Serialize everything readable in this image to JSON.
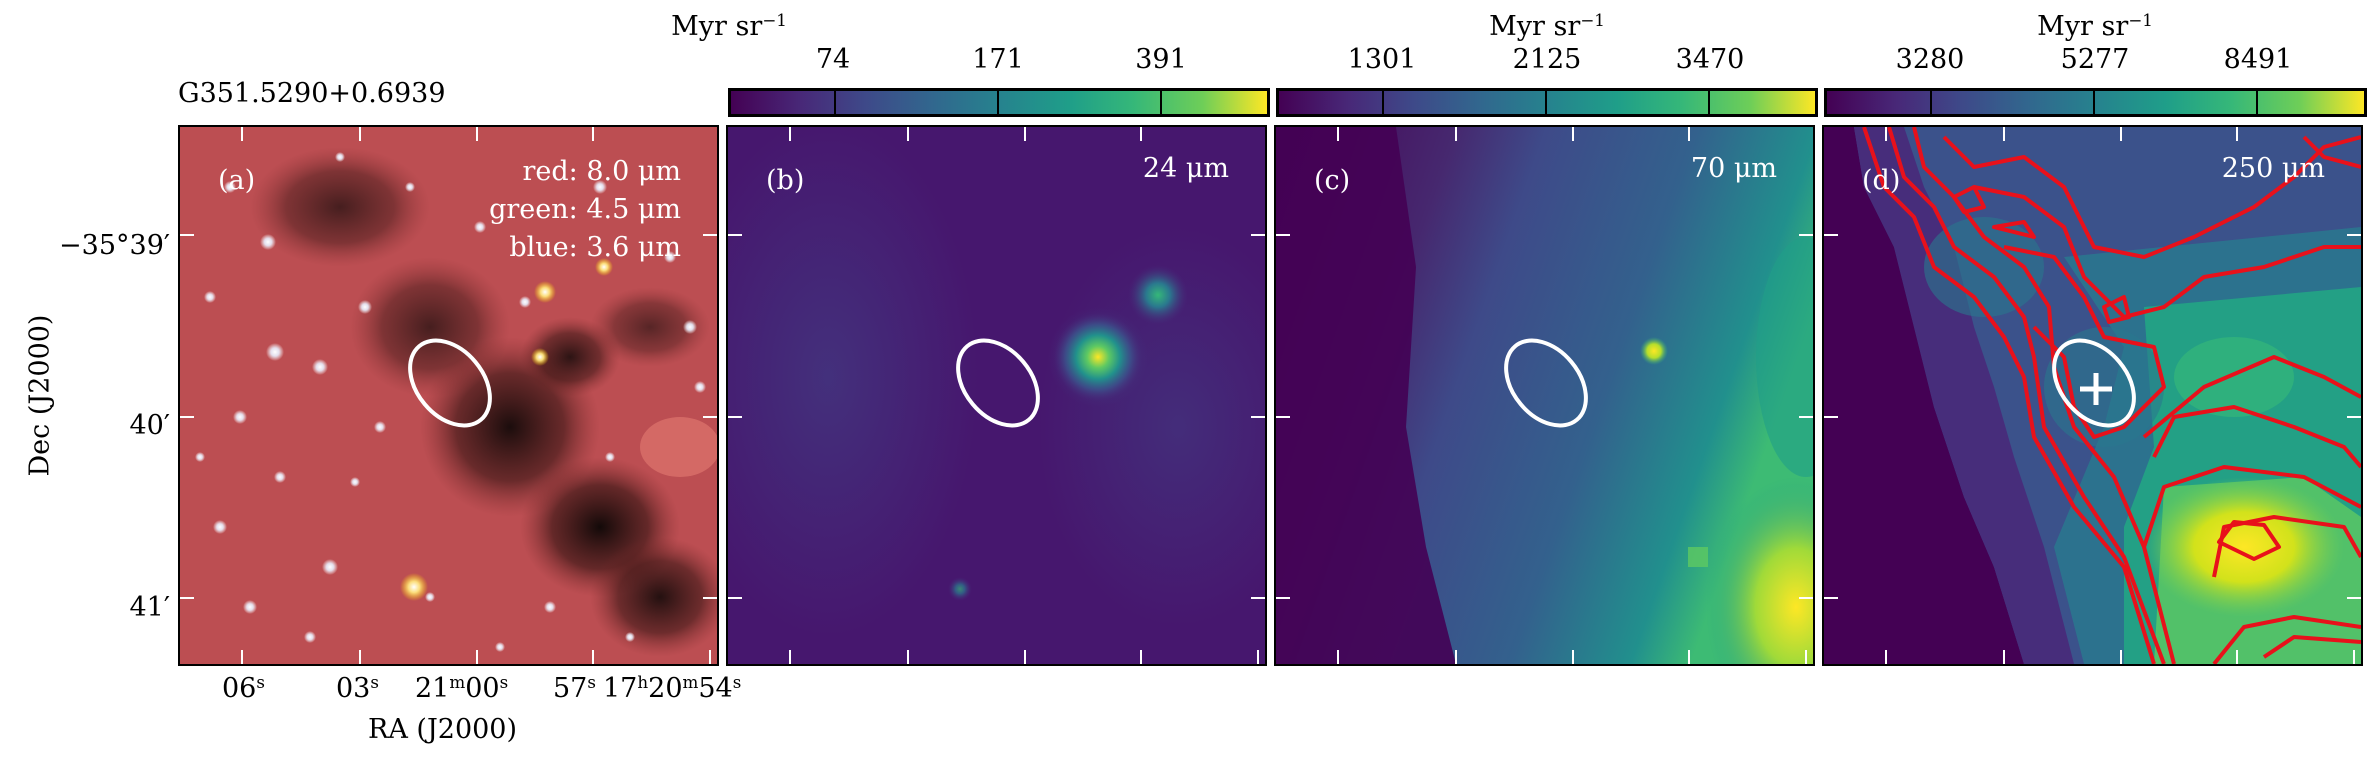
{
  "source_title": "G351.5290+0.6939",
  "colorbars": [
    {
      "label": "Myr sr",
      "exp": "−1",
      "ticks": [
        "74",
        "171",
        "391"
      ]
    },
    {
      "label": "Myr sr",
      "exp": "−1",
      "ticks": [
        "1301",
        "2125",
        "3470"
      ]
    },
    {
      "label": "Myr sr",
      "exp": "−1",
      "ticks": [
        "3280",
        "5277",
        "8491"
      ]
    }
  ],
  "panels": [
    {
      "tag": "(a)",
      "lines": [
        "red: 8.0 μm",
        "green: 4.5 μm",
        "blue: 3.6 μm"
      ]
    },
    {
      "tag": "(b)",
      "band": "24 μm"
    },
    {
      "tag": "(c)",
      "band": "70 μm"
    },
    {
      "tag": "(d)",
      "band": "250 μm"
    }
  ],
  "yaxis": {
    "label": "Dec (J2000)",
    "ticks": [
      "−35°39′",
      "40′",
      "41′"
    ]
  },
  "xaxis": {
    "label": "RA (J2000)",
    "ticks": [
      {
        "main": "06",
        "sup": "s"
      },
      {
        "main": "03",
        "sup": "s"
      },
      {
        "main": "21",
        "sup": "m",
        "main2": "00",
        "sup2": "s"
      },
      {
        "main": "57",
        "sup": "s"
      },
      {
        "main": "17",
        "sup": "h",
        "main2": "20",
        "sup2": "m",
        "main3": "54",
        "sup3": "s"
      }
    ]
  },
  "colors": {
    "viridis_low": "#440154",
    "viridis_mid": "#21918c",
    "viridis_high": "#fde725",
    "contour": "#e8111b",
    "marker": "#ffffff"
  }
}
